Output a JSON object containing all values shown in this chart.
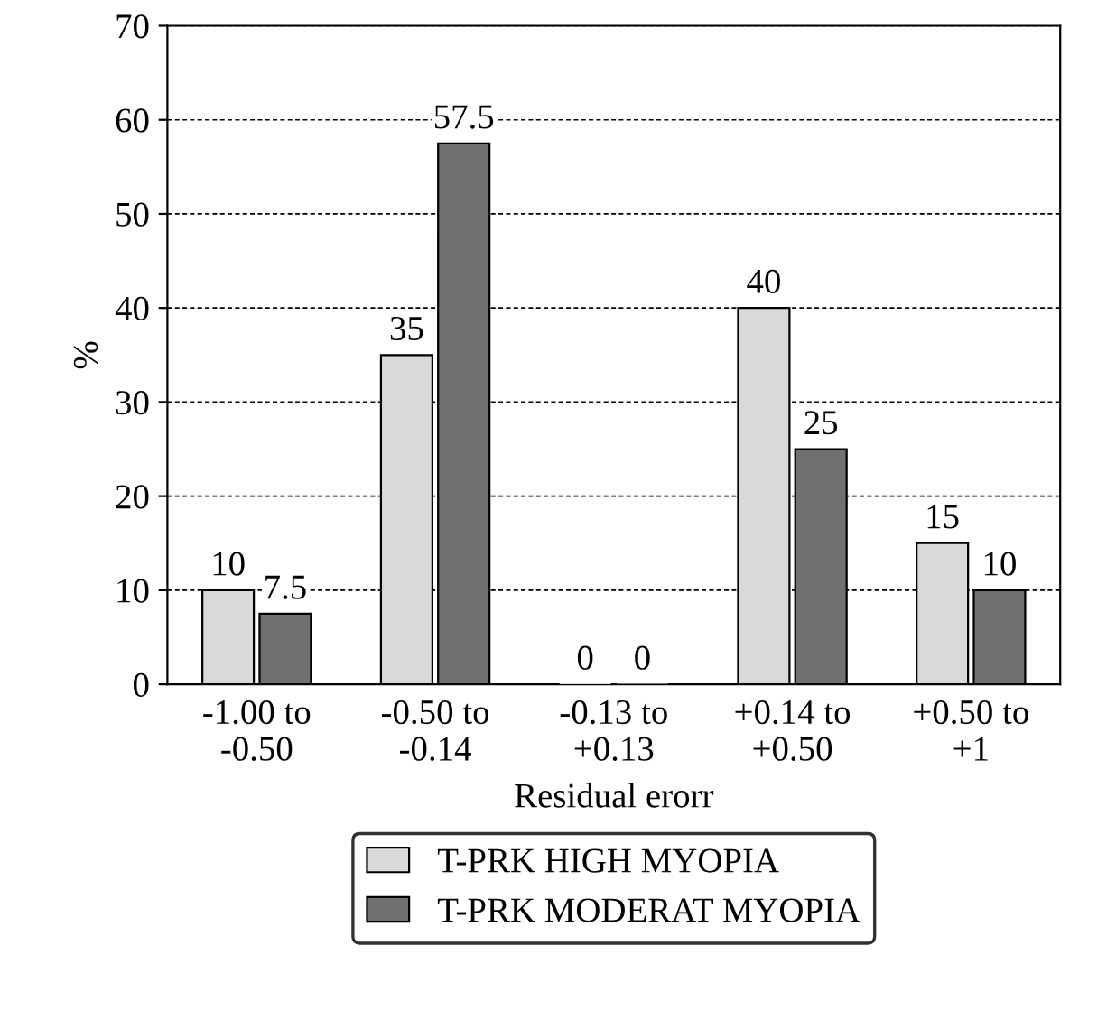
{
  "chart_data": {
    "type": "bar",
    "xlabel": "Residual erorr",
    "ylabel": "%",
    "categories": [
      "-1.00 to\n-0.50",
      "-0.50 to\n-0.14",
      "-0.13 to\n+0.13",
      "+0.14 to\n+0.50",
      "+0.50 to\n+1"
    ],
    "series": [
      {
        "name": "T-PRK HIGH MYOPIA",
        "color": "#d9d9d9",
        "values": [
          10,
          35,
          0,
          40,
          15
        ]
      },
      {
        "name": "T-PRK MODERAT MYOPIA",
        "color": "#707070",
        "values": [
          7.5,
          57.5,
          0,
          25,
          10
        ]
      }
    ],
    "ylim": [
      0,
      70
    ],
    "yticks": [
      0,
      10,
      20,
      30,
      40,
      50,
      60,
      70
    ],
    "grid": "y",
    "legend": "bottom",
    "data_labels": true
  }
}
